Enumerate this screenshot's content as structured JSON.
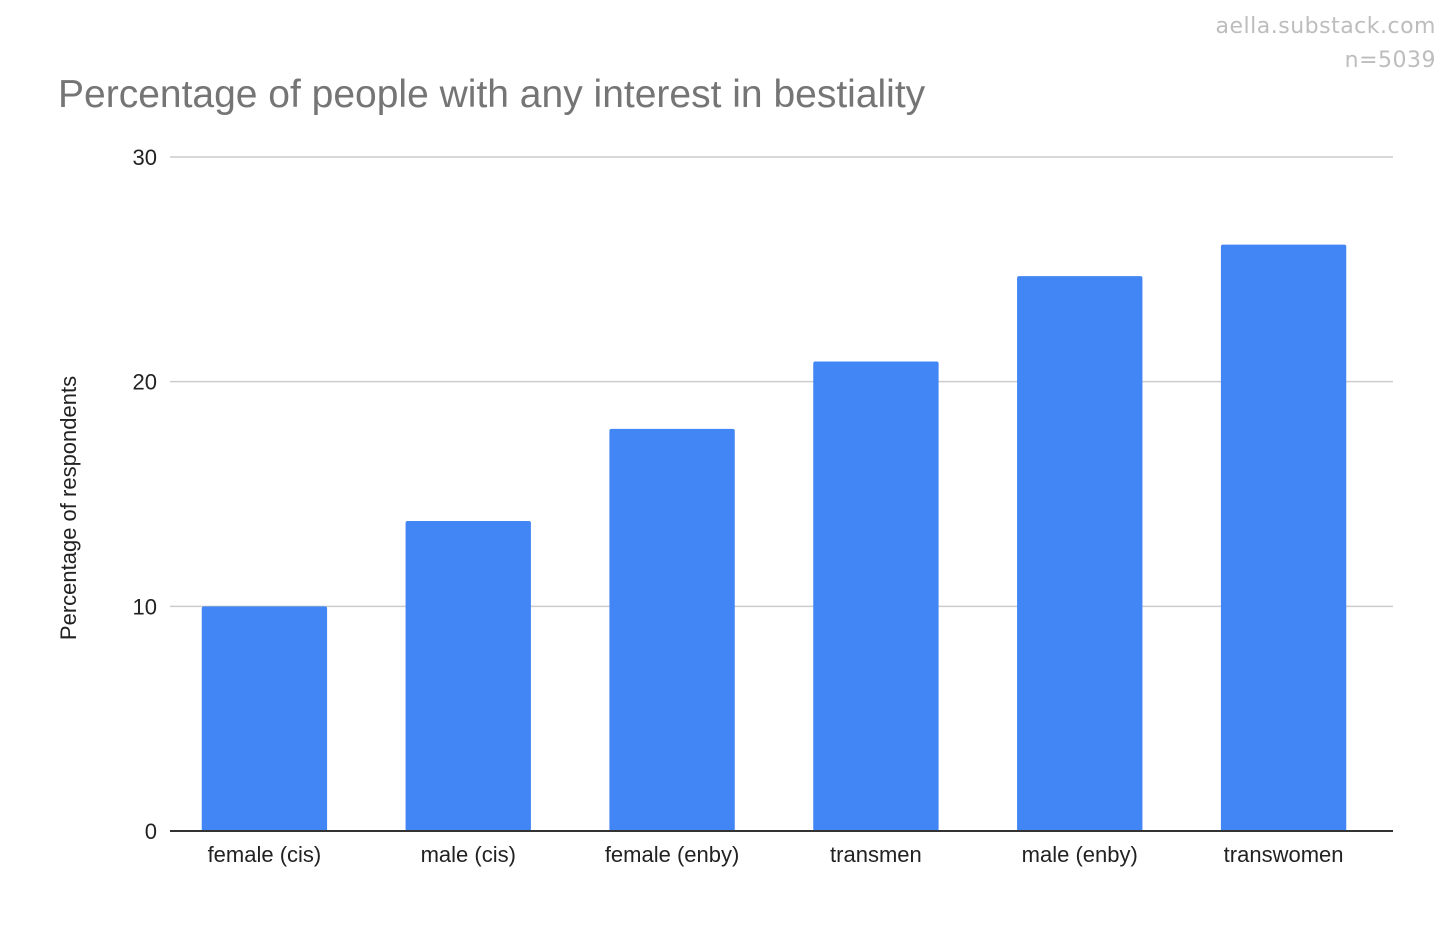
{
  "watermark": {
    "site": "aella.substack.com",
    "sample": "n=5039"
  },
  "colors": {
    "bar": "#4285F4",
    "title": "#757575",
    "gridline": "#cccccc",
    "axis": "#333333",
    "watermark": "#bdbdbd"
  },
  "chart_data": {
    "type": "bar",
    "title": "Percentage of people with any interest in bestiality",
    "xlabel": "",
    "ylabel": "Percentage of respondents",
    "categories": [
      "female (cis)",
      "male (cis)",
      "female (enby)",
      "transmen",
      "male (enby)",
      "transwomen"
    ],
    "values": [
      10,
      13.8,
      17.9,
      20.9,
      24.7,
      26.1
    ],
    "ylim": [
      0,
      30
    ],
    "yticks": [
      0,
      10,
      20,
      30
    ],
    "grid": true,
    "legend": "none"
  }
}
